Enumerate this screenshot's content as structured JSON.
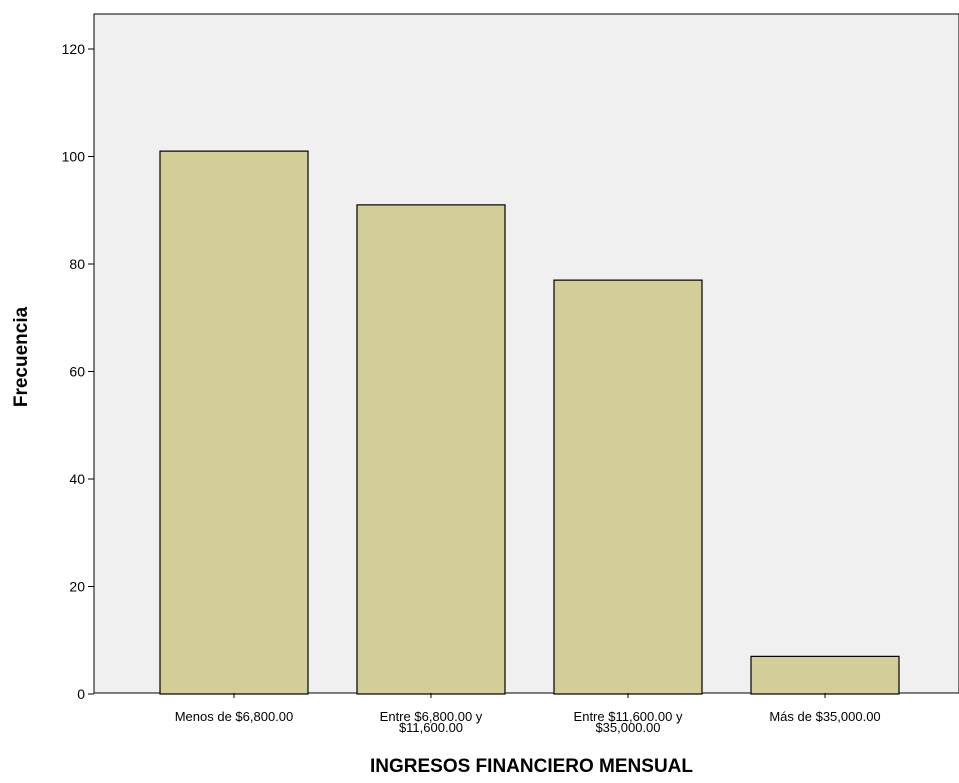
{
  "chart_data": {
    "type": "bar",
    "title": "",
    "xlabel": "INGRESOS FINANCIERO MENSUAL",
    "ylabel": "Frecuencia",
    "ylim": [
      0,
      120
    ],
    "yticks": [
      0,
      20,
      40,
      60,
      80,
      100,
      120
    ],
    "categories": [
      [
        "Menos de $6,800.00"
      ],
      [
        "Entre $6,800.00 y",
        "$11,600.00"
      ],
      [
        "Entre $11,600.00 y",
        "$35,000.00"
      ],
      [
        "Más de $35,000.00"
      ]
    ],
    "values": [
      101,
      91,
      77,
      7
    ],
    "grid": false,
    "colors": {
      "bar_fill": "#d3ce97",
      "bar_stroke": "#000000",
      "plot_background": "#f0f0f0",
      "axis": "#000000"
    }
  }
}
